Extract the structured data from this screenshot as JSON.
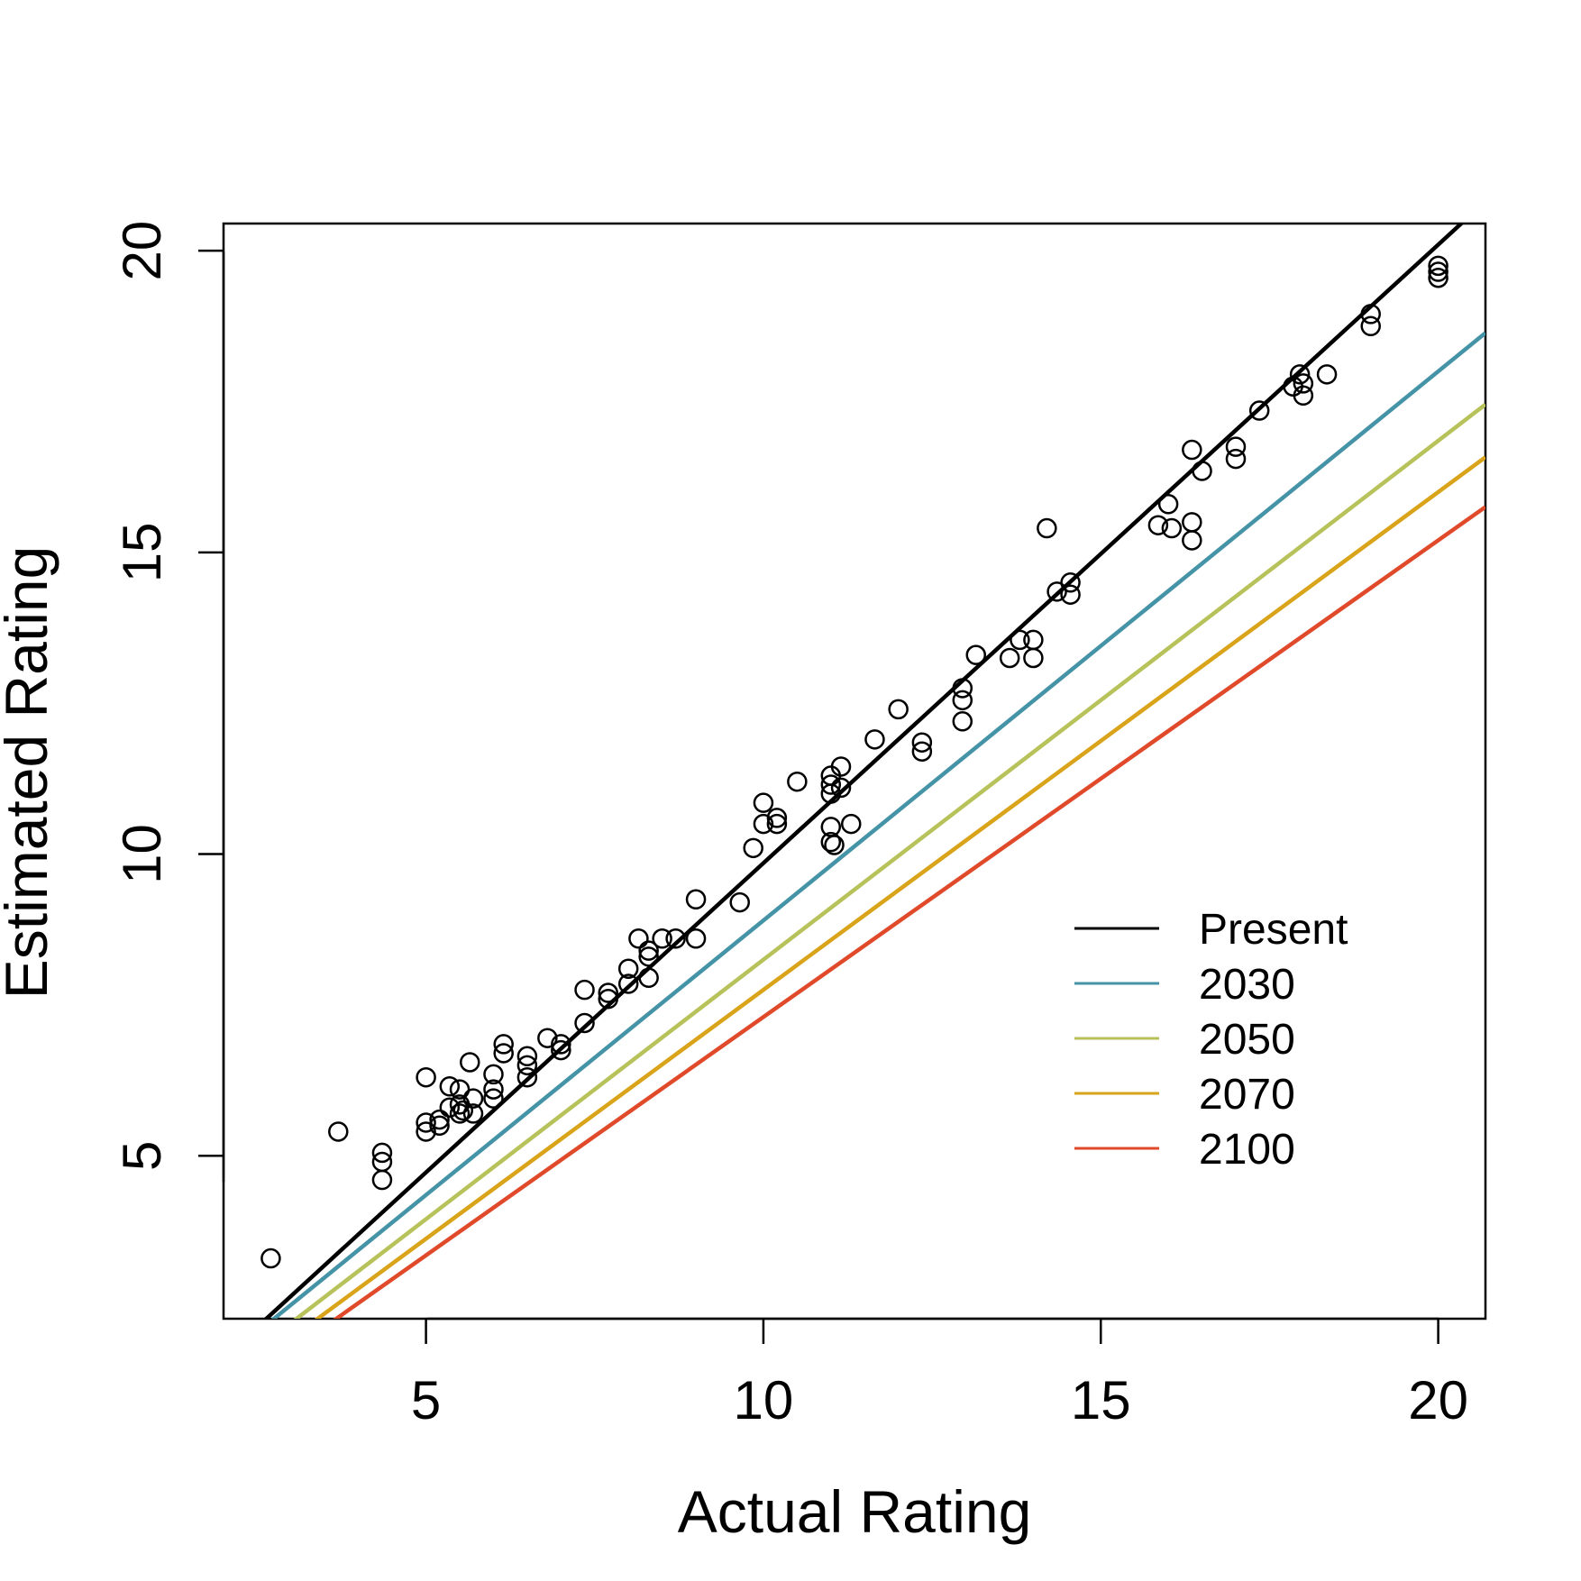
{
  "chart_data": {
    "type": "scatter",
    "title": "",
    "xlabel": "Actual Rating",
    "ylabel": "Estimated Rating",
    "xlim": [
      2.0,
      20.7
    ],
    "ylim": [
      2.3,
      20.45
    ],
    "xticks": [
      5,
      10,
      15,
      20
    ],
    "yticks": [
      5,
      10,
      15,
      20
    ],
    "xtick_labels": [
      "5",
      "10",
      "15",
      "20"
    ],
    "ytick_labels": [
      "5",
      "10",
      "15",
      "20"
    ],
    "grid": false,
    "legend_position": "right",
    "points": [
      [
        2.7,
        3.3
      ],
      [
        3.7,
        5.4
      ],
      [
        4.35,
        5.05
      ],
      [
        4.35,
        4.9
      ],
      [
        4.35,
        4.6
      ],
      [
        5.0,
        6.3
      ],
      [
        5.0,
        5.55
      ],
      [
        5.0,
        5.4
      ],
      [
        5.2,
        5.6
      ],
      [
        5.2,
        5.5
      ],
      [
        5.35,
        6.15
      ],
      [
        5.35,
        5.8
      ],
      [
        5.5,
        6.1
      ],
      [
        5.5,
        5.85
      ],
      [
        5.5,
        5.7
      ],
      [
        5.55,
        5.75
      ],
      [
        5.65,
        6.55
      ],
      [
        5.7,
        5.95
      ],
      [
        5.7,
        5.7
      ],
      [
        6.0,
        6.35
      ],
      [
        6.0,
        6.1
      ],
      [
        6.0,
        5.95
      ],
      [
        6.15,
        6.85
      ],
      [
        6.15,
        6.7
      ],
      [
        6.5,
        6.65
      ],
      [
        6.5,
        6.5
      ],
      [
        6.5,
        6.3
      ],
      [
        6.8,
        6.95
      ],
      [
        7.0,
        6.85
      ],
      [
        7.0,
        6.75
      ],
      [
        7.35,
        7.75
      ],
      [
        7.35,
        7.2
      ],
      [
        7.7,
        7.7
      ],
      [
        7.7,
        7.6
      ],
      [
        8.0,
        8.1
      ],
      [
        8.0,
        7.85
      ],
      [
        8.15,
        8.6
      ],
      [
        8.3,
        8.4
      ],
      [
        8.3,
        8.3
      ],
      [
        8.3,
        7.95
      ],
      [
        8.5,
        8.6
      ],
      [
        8.7,
        8.6
      ],
      [
        9.0,
        9.25
      ],
      [
        9.0,
        8.6
      ],
      [
        9.65,
        9.2
      ],
      [
        9.85,
        10.1
      ],
      [
        10.0,
        10.85
      ],
      [
        10.0,
        10.5
      ],
      [
        10.2,
        10.6
      ],
      [
        10.2,
        10.5
      ],
      [
        10.5,
        11.2
      ],
      [
        11.0,
        11.3
      ],
      [
        11.0,
        11.15
      ],
      [
        11.0,
        11.0
      ],
      [
        11.0,
        10.45
      ],
      [
        11.0,
        10.2
      ],
      [
        11.05,
        10.15
      ],
      [
        11.15,
        11.45
      ],
      [
        11.15,
        11.1
      ],
      [
        11.3,
        10.5
      ],
      [
        11.65,
        11.9
      ],
      [
        12.0,
        12.4
      ],
      [
        12.35,
        11.85
      ],
      [
        12.35,
        11.7
      ],
      [
        12.95,
        12.75
      ],
      [
        12.95,
        12.55
      ],
      [
        12.95,
        12.2
      ],
      [
        13.15,
        13.3
      ],
      [
        13.65,
        13.25
      ],
      [
        13.8,
        13.55
      ],
      [
        14.0,
        13.55
      ],
      [
        14.0,
        13.25
      ],
      [
        14.2,
        15.4
      ],
      [
        14.35,
        14.35
      ],
      [
        14.55,
        14.5
      ],
      [
        14.55,
        14.3
      ],
      [
        15.85,
        15.45
      ],
      [
        16.0,
        15.8
      ],
      [
        16.05,
        15.4
      ],
      [
        16.35,
        16.7
      ],
      [
        16.35,
        15.5
      ],
      [
        16.35,
        15.2
      ],
      [
        16.5,
        16.35
      ],
      [
        17.0,
        16.75
      ],
      [
        17.0,
        16.55
      ],
      [
        17.35,
        17.35
      ],
      [
        17.85,
        17.75
      ],
      [
        17.95,
        17.95
      ],
      [
        18.0,
        17.8
      ],
      [
        18.0,
        17.6
      ],
      [
        18.35,
        17.95
      ],
      [
        19.0,
        18.95
      ],
      [
        19.0,
        18.75
      ],
      [
        20.0,
        19.75
      ],
      [
        20.0,
        19.65
      ],
      [
        20.0,
        19.55
      ]
    ],
    "series": [
      {
        "name": "Present",
        "color": "#000000",
        "slope": 1.025,
        "intercept": -0.4
      },
      {
        "name": "2030",
        "color": "#4593a6",
        "slope": 0.91,
        "intercept": -0.2
      },
      {
        "name": "2050",
        "color": "#b8c25a",
        "slope": 0.86,
        "intercept": -0.35
      },
      {
        "name": "2070",
        "color": "#d9a31a",
        "slope": 0.825,
        "intercept": -0.5
      },
      {
        "name": "2100",
        "color": "#e04a2a",
        "slope": 0.79,
        "intercept": -0.6
      }
    ]
  }
}
